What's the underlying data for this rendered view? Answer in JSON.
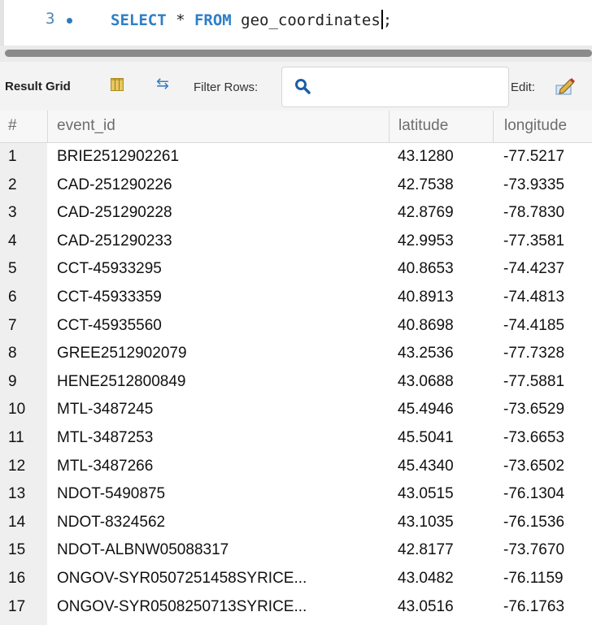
{
  "editor": {
    "line_number": "3",
    "sql": {
      "kw_select": "SELECT",
      "star": " * ",
      "kw_from": "FROM",
      "rest": " geo_coordinates",
      "end": ";"
    }
  },
  "toolbar": {
    "result_grid_label": "Result Grid",
    "filter_rows_label": "Filter Rows:",
    "filter_value": "",
    "edit_label": "Edit:"
  },
  "grid": {
    "columns": [
      "#",
      "event_id",
      "latitude",
      "longitude"
    ],
    "rows": [
      [
        "1",
        "BRIE2512902261",
        "43.1280",
        "-77.5217"
      ],
      [
        "2",
        "CAD-251290226",
        "42.7538",
        "-73.9335"
      ],
      [
        "3",
        "CAD-251290228",
        "42.8769",
        "-78.7830"
      ],
      [
        "4",
        "CAD-251290233",
        "42.9953",
        "-77.3581"
      ],
      [
        "5",
        "CCT-45933295",
        "40.8653",
        "-74.4237"
      ],
      [
        "6",
        "CCT-45933359",
        "40.8913",
        "-74.4813"
      ],
      [
        "7",
        "CCT-45935560",
        "40.8698",
        "-74.4185"
      ],
      [
        "8",
        "GREE2512902079",
        "43.2536",
        "-77.7328"
      ],
      [
        "9",
        "HENE2512800849",
        "43.0688",
        "-77.5881"
      ],
      [
        "10",
        "MTL-3487245",
        "45.4946",
        "-73.6529"
      ],
      [
        "11",
        "MTL-3487253",
        "45.5041",
        "-73.6653"
      ],
      [
        "12",
        "MTL-3487266",
        "45.4340",
        "-73.6502"
      ],
      [
        "13",
        "NDOT-5490875",
        "43.0515",
        "-76.1304"
      ],
      [
        "14",
        "NDOT-8324562",
        "43.1035",
        "-76.1536"
      ],
      [
        "15",
        "NDOT-ALBNW05088317",
        "42.8177",
        "-73.7670"
      ],
      [
        "16",
        "ONGOV-SYR0507251458SYRICE...",
        "43.0482",
        "-76.1159"
      ],
      [
        "17",
        "ONGOV-SYR0508250713SYRICE...",
        "43.0516",
        "-76.1763"
      ]
    ]
  }
}
